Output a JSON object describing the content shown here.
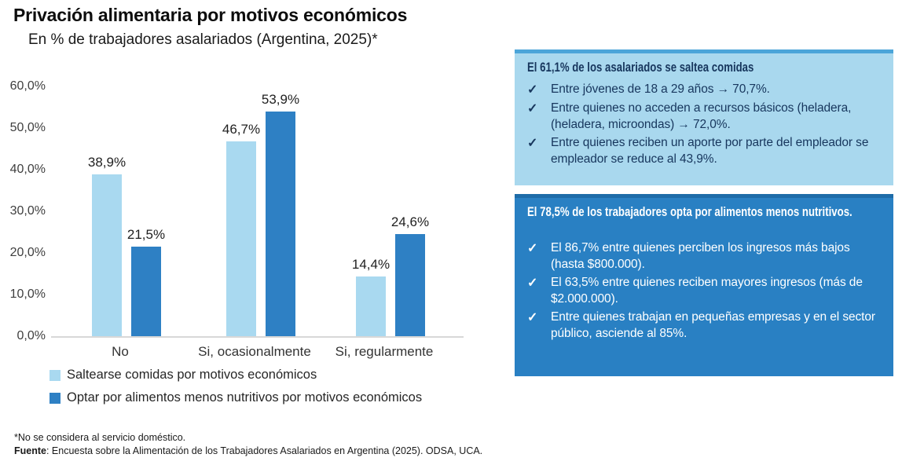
{
  "title": "Privación alimentaria por motivos económicos",
  "subtitle": "En % de trabajadores asalariados (Argentina, 2025)*",
  "chart_data": {
    "type": "bar",
    "categories": [
      "No",
      "Si, ocasionalmente",
      "Si, regularmente"
    ],
    "series": [
      {
        "name": "Saltearse comidas por motivos económicos",
        "color": "#A9D9F0",
        "values": [
          38.9,
          46.7,
          14.4
        ],
        "labels": [
          "38,9%",
          "46,7%",
          "14,4%"
        ]
      },
      {
        "name": "Optar por alimentos menos nutritivos por motivos económicos",
        "color": "#2E80C4",
        "values": [
          21.5,
          53.9,
          24.6
        ],
        "labels": [
          "21,5%",
          "53,9%",
          "24,6%"
        ]
      }
    ],
    "ylim": [
      0,
      60
    ],
    "ytick_labels": [
      "0,0%",
      "10,0%",
      "20,0%",
      "30,0%",
      "40,0%",
      "50,0%",
      "60,0%"
    ],
    "grid": false,
    "legend_position": "bottom-left"
  },
  "check_glyph": "✓",
  "info_boxes": [
    {
      "header": "El 61,1% de los asalariados se saltea comidas",
      "bullets": [
        "Entre jóvenes de 18 a 29 años → 70,7%.",
        "Entre quienes no acceden a recursos básicos (heladera, (heladera, microondas) → 72,0%.",
        "Entre quienes reciben un aporte por parte del empleador se empleador se reduce al 43,9%."
      ],
      "bg": "#A9D8EE",
      "text": "#17365D",
      "accent": "#4BA5D9"
    },
    {
      "header": "El 78,5% de los trabajadores opta por alimentos menos nutritivos.",
      "bullets": [
        "El 86,7% entre quienes perciben los ingresos más bajos (hasta $800.000).",
        "El 63,5% entre quienes reciben mayores ingresos (más de $2.000.000).",
        "Entre quienes trabajan en pequeñas empresas y en el sector público, asciende al 85%."
      ],
      "bg": "#2980C3",
      "text": "#FFFFFF",
      "accent": "#1E6CA8"
    }
  ],
  "footnotes": {
    "note": "*No se considera al servicio doméstico.",
    "source_label": "Fuente",
    "source_text": ": Encuesta sobre la Alimentación de los Trabajadores Asalariados en Argentina (2025). ODSA, UCA."
  }
}
